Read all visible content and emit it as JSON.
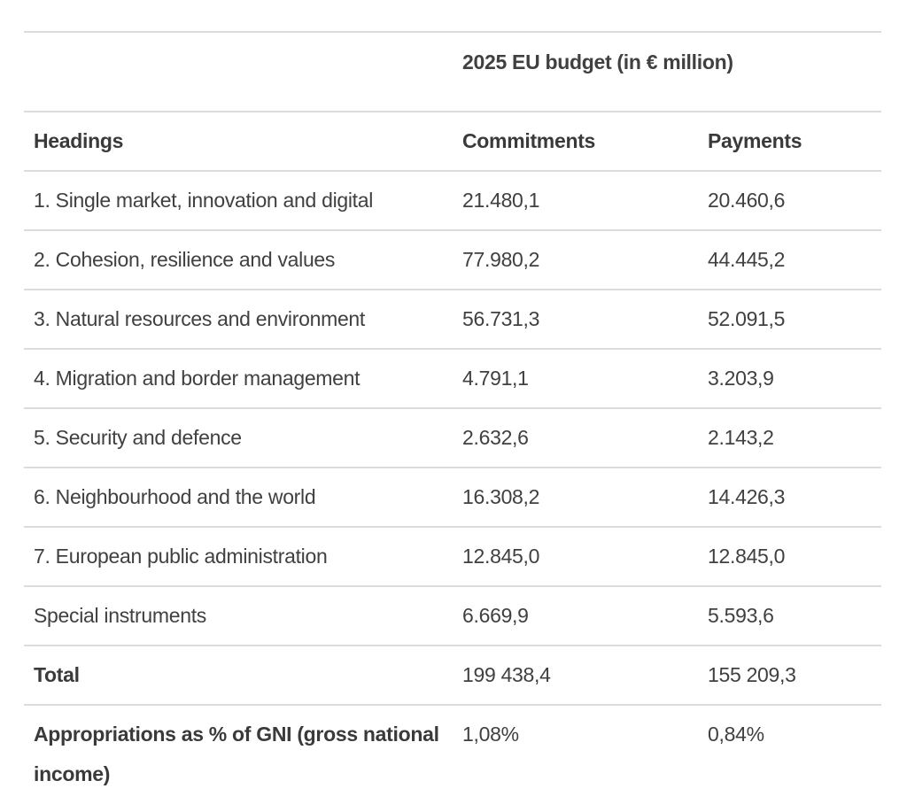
{
  "table": {
    "super_header": "2025 EU budget (in € million)",
    "columns": {
      "headings": "Headings",
      "commitments": "Commitments",
      "payments": "Payments"
    },
    "rows": [
      {
        "heading": "1. Single market, innovation and digital",
        "commitments": "21.480,1",
        "payments": "20.460,6"
      },
      {
        "heading": "2. Cohesion, resilience and values",
        "commitments": "77.980,2",
        "payments": "44.445,2"
      },
      {
        "heading": "3. Natural resources and environment",
        "commitments": "56.731,3",
        "payments": "52.091,5"
      },
      {
        "heading": "4. Migration and border management",
        "commitments": "4.791,1",
        "payments": "3.203,9"
      },
      {
        "heading": "5. Security and defence",
        "commitments": "2.632,6",
        "payments": "2.143,2"
      },
      {
        "heading": "6. Neighbourhood and the world",
        "commitments": "16.308,2",
        "payments": "14.426,3"
      },
      {
        "heading": "7. European public administration",
        "commitments": "12.845,0",
        "payments": "12.845,0"
      },
      {
        "heading": "Special instruments",
        "commitments": "6.669,9",
        "payments": "5.593,6"
      }
    ],
    "total": {
      "heading": "Total",
      "commitments": "199 438,4",
      "payments": "155 209,3"
    },
    "gni": {
      "heading": "Appropriations as % of GNI (gross national income)",
      "commitments": "1,08%",
      "payments": "0,84%"
    }
  }
}
